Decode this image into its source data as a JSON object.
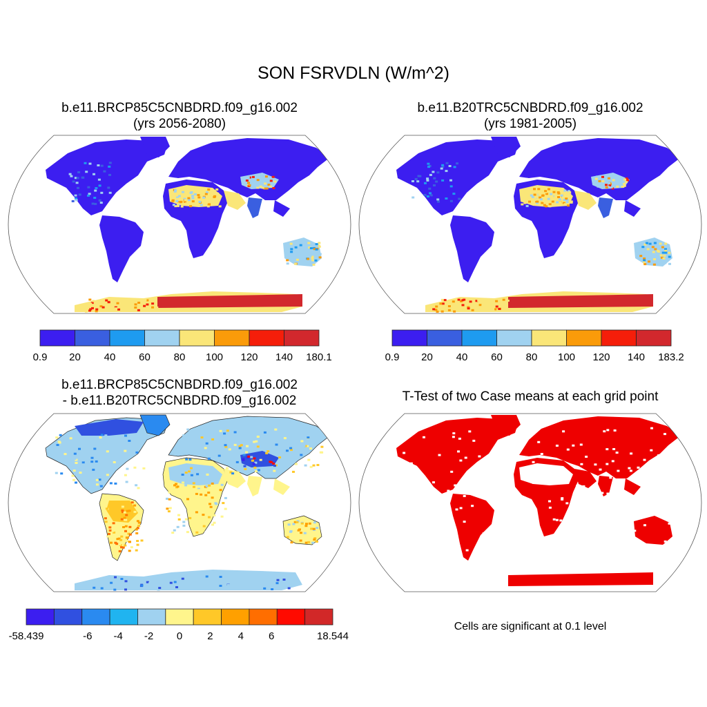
{
  "title": "SON FSRVDLN (W/m^2)",
  "panels": [
    {
      "title_line1": "b.e11.BRCP85C5CNBDRD.f09_g16.002",
      "title_line2": "(yrs 2056-2080)"
    },
    {
      "title_line1": "b.e11.B20TRC5CNBDRD.f09_g16.002",
      "title_line2": "(yrs 1981-2005)"
    },
    {
      "title_line1": "b.e11.BRCP85C5CNBDRD.f09_g16.002",
      "title_line2": "- b.e11.B20TRC5CNBDRD.f09_g16.002"
    },
    {
      "title_line1": "T-Test of two Case means at each grid point"
    }
  ],
  "note": "Cells are significant at 0.1 level",
  "colorbars": [
    {
      "labels": [
        "0.9",
        "20",
        "40",
        "60",
        "80",
        "100",
        "120",
        "140",
        "180.1"
      ],
      "colors": [
        "#3c1ef0",
        "#3a5fe0",
        "#1e9bf0",
        "#a0d2f0",
        "#fae678",
        "#fa9b0a",
        "#f51e0a",
        "#d2282d"
      ]
    },
    {
      "labels": [
        "0.9",
        "20",
        "40",
        "60",
        "80",
        "100",
        "120",
        "140",
        "183.2"
      ],
      "colors": [
        "#3c1ef0",
        "#3a5fe0",
        "#1e9bf0",
        "#a0d2f0",
        "#fae678",
        "#fa9b0a",
        "#f51e0a",
        "#d2282d"
      ]
    },
    {
      "labels": [
        "-58.439",
        "",
        "-6",
        "-4",
        "-2",
        "0",
        "2",
        "4",
        "6",
        "",
        "18.544"
      ],
      "colors": [
        "#3c1ef0",
        "#3050e0",
        "#2a8af0",
        "#20b4f0",
        "#a0d2f0",
        "#fff58c",
        "#ffc828",
        "#ffa000",
        "#ff6e00",
        "#ff0a00",
        "#d22828"
      ]
    }
  ],
  "chart_data": [
    {
      "type": "heatmap",
      "title": "b.e11.BRCP85C5CNBDRD.f09_g16.002 (yrs 2056-2080)",
      "variable": "FSRVDLN",
      "season": "SON",
      "units": "W/m^2",
      "levels": [
        0.9,
        20,
        40,
        60,
        80,
        100,
        120,
        140,
        180.1
      ],
      "regions": [
        {
          "region": "North America",
          "value_range": [
            0.9,
            60
          ]
        },
        {
          "region": "South America",
          "value_range": [
            0.9,
            60
          ]
        },
        {
          "region": "Sahara / Arabia",
          "value_range": [
            60,
            100
          ]
        },
        {
          "region": "Tibetan Plateau",
          "value_range": [
            80,
            140
          ]
        },
        {
          "region": "Australia",
          "value_range": [
            20,
            80
          ]
        },
        {
          "region": "Antarctica",
          "value_range": [
            100,
            180.1
          ]
        }
      ]
    },
    {
      "type": "heatmap",
      "title": "b.e11.B20TRC5CNBDRD.f09_g16.002 (yrs 1981-2005)",
      "variable": "FSRVDLN",
      "season": "SON",
      "units": "W/m^2",
      "levels": [
        0.9,
        20,
        40,
        60,
        80,
        100,
        120,
        140,
        183.2
      ],
      "regions": [
        {
          "region": "North America",
          "value_range": [
            0.9,
            60
          ]
        },
        {
          "region": "South America",
          "value_range": [
            0.9,
            60
          ]
        },
        {
          "region": "Sahara / Arabia",
          "value_range": [
            60,
            100
          ]
        },
        {
          "region": "Tibetan Plateau",
          "value_range": [
            80,
            140
          ]
        },
        {
          "region": "Australia",
          "value_range": [
            20,
            80
          ]
        },
        {
          "region": "Antarctica",
          "value_range": [
            100,
            183.2
          ]
        }
      ]
    },
    {
      "type": "heatmap",
      "title": "b.e11.BRCP85C5CNBDRD.f09_g16.002 - b.e11.B20TRC5CNBDRD.f09_g16.002",
      "levels": [
        -58.439,
        -6,
        -4,
        -2,
        0,
        2,
        4,
        6,
        18.544
      ],
      "regions": [
        {
          "region": "Canada / Arctic",
          "value_range": [
            -58.439,
            -2
          ]
        },
        {
          "region": "Amazon",
          "value_range": [
            0,
            18.544
          ]
        },
        {
          "region": "Sahara",
          "value_range": [
            -6,
            2
          ]
        },
        {
          "region": "Tibetan Plateau",
          "value_range": [
            -58.439,
            -2
          ]
        },
        {
          "region": "Australia",
          "value_range": [
            0,
            6
          ]
        },
        {
          "region": "Antarctica",
          "value_range": [
            -6,
            0
          ]
        }
      ]
    },
    {
      "type": "heatmap",
      "title": "T-Test of two Case means at each grid point",
      "significance_level": 0.1,
      "significant_color": "#ee0000",
      "regions": [
        {
          "region": "North America",
          "significant": true
        },
        {
          "region": "South America",
          "significant": true
        },
        {
          "region": "Sahara",
          "significant": false
        },
        {
          "region": "Eurasia",
          "significant": true
        },
        {
          "region": "Australia",
          "significant": true
        },
        {
          "region": "Antarctica",
          "significant": true
        }
      ]
    }
  ]
}
